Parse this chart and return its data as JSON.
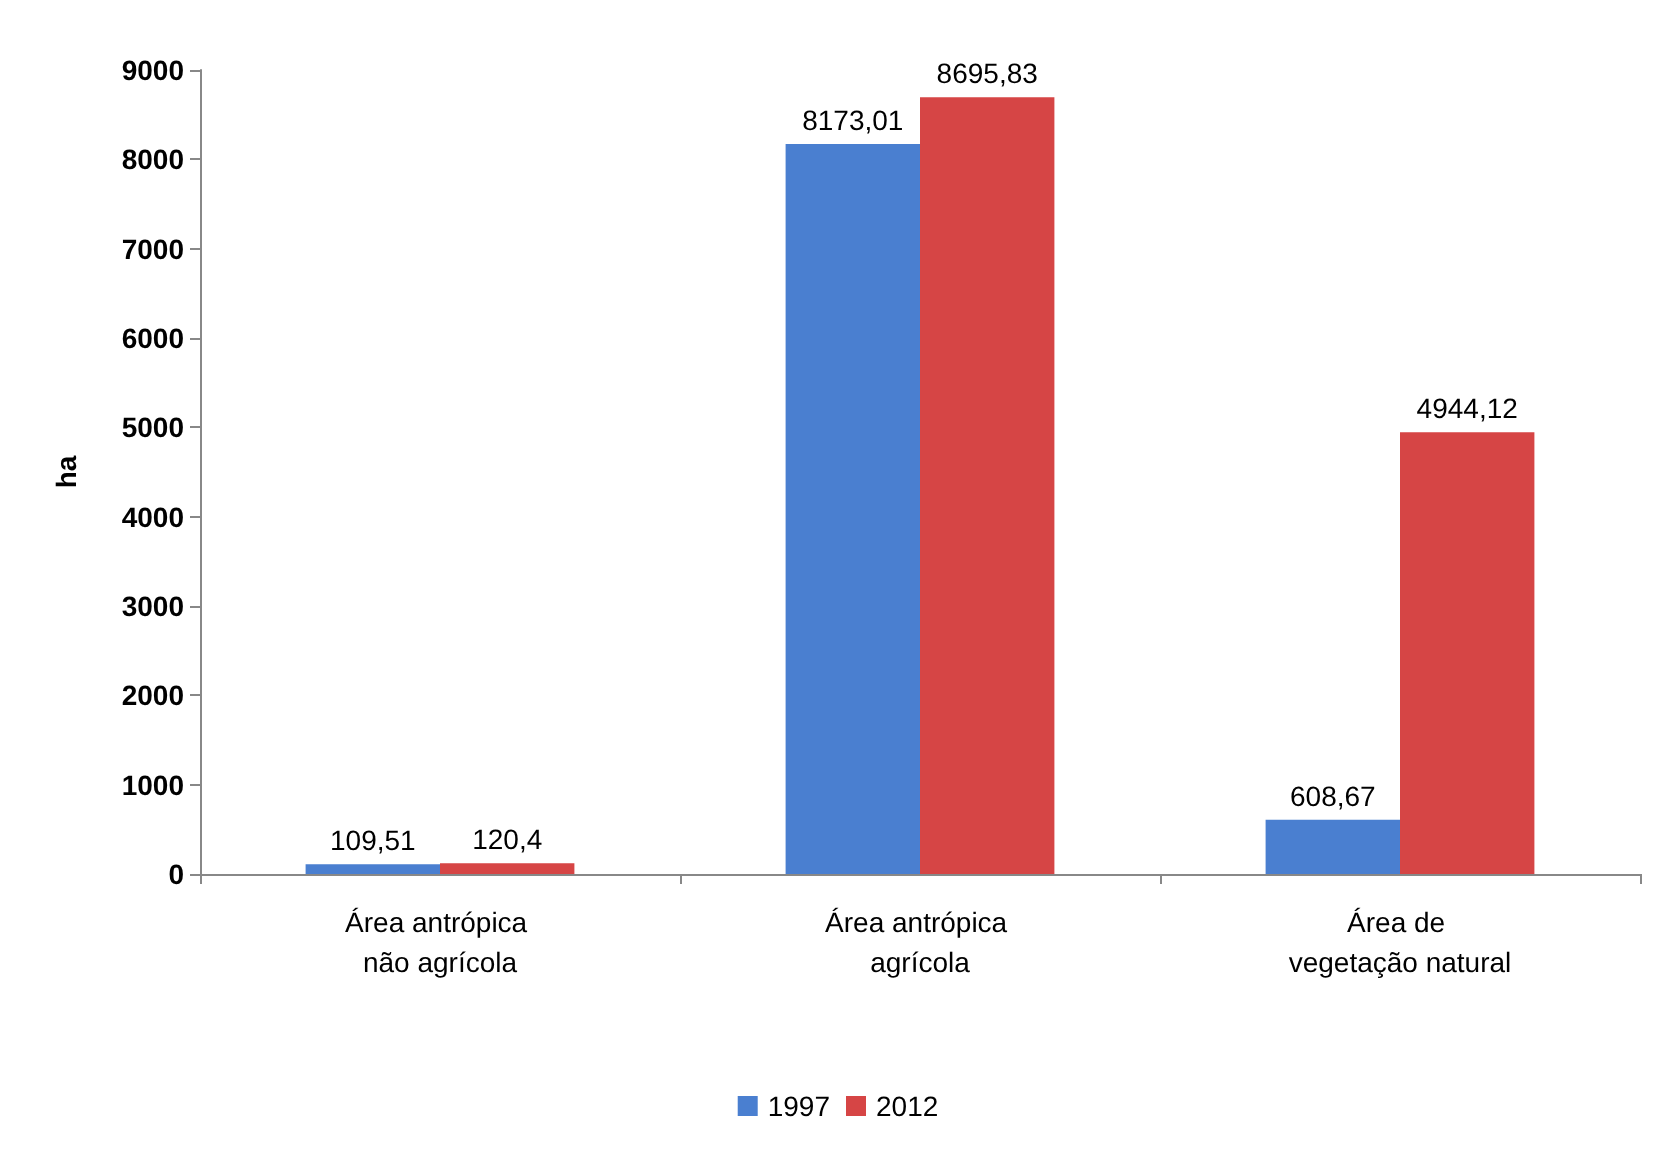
{
  "chart_data": {
    "type": "bar",
    "ylabel": "ha",
    "categories": [
      "Área antrópica não agrícola",
      "Área antrópica agrícola",
      "Área de vegetação natural"
    ],
    "series": [
      {
        "name": "1997",
        "color": "#4a7fd0",
        "values": [
          109.51,
          8173.01,
          608.67
        ],
        "value_labels": [
          "109,51",
          "8173,01",
          "608,67"
        ]
      },
      {
        "name": "2012",
        "color": "#d64545",
        "values": [
          120.4,
          8695.83,
          4944.12
        ],
        "value_labels": [
          "120,4",
          "8695,83",
          "4944,12"
        ]
      }
    ],
    "ylim": [
      0,
      9000
    ],
    "yticks": [
      0,
      1000,
      2000,
      3000,
      4000,
      5000,
      6000,
      7000,
      8000,
      9000
    ],
    "grid": false,
    "legend": "bottom"
  }
}
